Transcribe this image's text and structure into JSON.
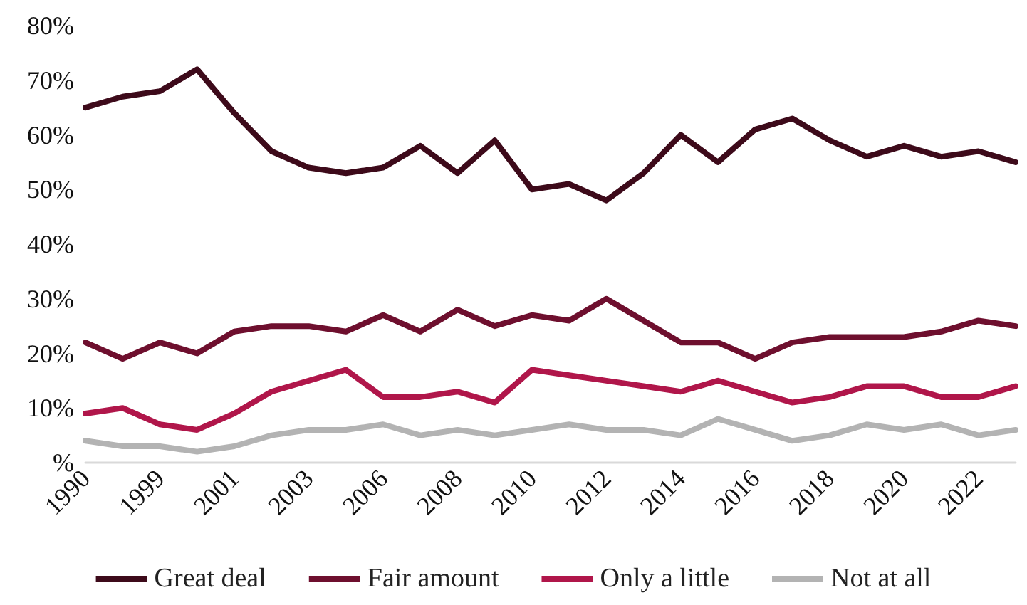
{
  "chart_data": {
    "type": "line",
    "categories": [
      "1990",
      null,
      "1999",
      null,
      "2001",
      null,
      "2003",
      null,
      "2006",
      null,
      "2008",
      null,
      "2010",
      null,
      "2012",
      null,
      "2014",
      null,
      "2016",
      null,
      "2018",
      null,
      "2020",
      null,
      "2022",
      null
    ],
    "series": [
      {
        "name": "Great deal",
        "color": "#3d0a1a",
        "values": [
          65,
          67,
          68,
          72,
          64,
          57,
          54,
          53,
          54,
          58,
          53,
          59,
          50,
          51,
          48,
          53,
          60,
          55,
          61,
          63,
          59,
          56,
          58,
          56,
          57,
          55
        ]
      },
      {
        "name": "Fair amount",
        "color": "#6e0f2e",
        "values": [
          22,
          19,
          22,
          20,
          24,
          25,
          25,
          24,
          27,
          24,
          28,
          25,
          27,
          26,
          30,
          26,
          22,
          22,
          19,
          22,
          23,
          23,
          23,
          24,
          26,
          25
        ]
      },
      {
        "name": "Only a little",
        "color": "#b0164a",
        "values": [
          9,
          10,
          7,
          6,
          9,
          13,
          15,
          17,
          12,
          12,
          13,
          11,
          17,
          16,
          15,
          14,
          13,
          15,
          13,
          11,
          12,
          14,
          14,
          12,
          12,
          14
        ]
      },
      {
        "name": "Not at all",
        "color": "#b3b3b3",
        "values": [
          4,
          3,
          3,
          2,
          3,
          5,
          6,
          6,
          7,
          5,
          6,
          5,
          6,
          7,
          6,
          6,
          5,
          8,
          6,
          4,
          5,
          7,
          6,
          7,
          5,
          6
        ]
      }
    ],
    "ylim": [
      0,
      80
    ],
    "yticks": [
      {
        "value": 0,
        "label": "%"
      },
      {
        "value": 10,
        "label": "10%"
      },
      {
        "value": 20,
        "label": "20%"
      },
      {
        "value": 30,
        "label": "30%"
      },
      {
        "value": 40,
        "label": "40%"
      },
      {
        "value": 50,
        "label": "50%"
      },
      {
        "value": 60,
        "label": "60%"
      },
      {
        "value": 70,
        "label": "70%"
      },
      {
        "value": 80,
        "label": "80%"
      }
    ],
    "grid": false,
    "legend": "bottom",
    "marker": "none",
    "line_style": "solid"
  }
}
